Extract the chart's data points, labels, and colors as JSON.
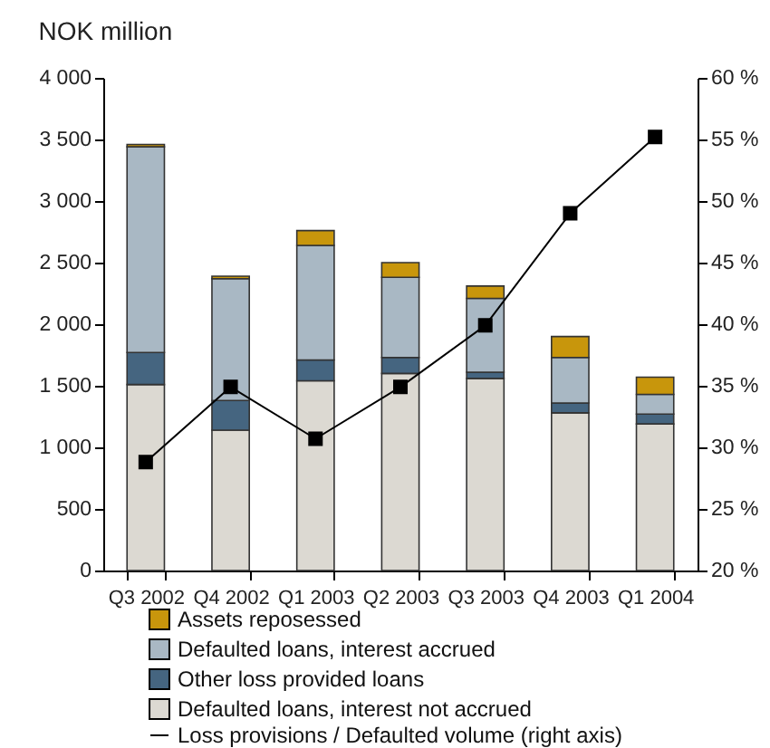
{
  "chart_data": {
    "type": "bar",
    "title": "NOK million",
    "stacked": true,
    "legend": "bottom",
    "grid": false,
    "categories": [
      "Q3 2002",
      "Q4 2002",
      "Q1 2003",
      "Q2 2003",
      "Q3 2003",
      "Q4 2003",
      "Q1 2004"
    ],
    "series": [
      {
        "name": "Defaulted loans, interest not accrued",
        "color": "#dcd9d2",
        "values": [
          1510,
          1140,
          1540,
          1600,
          1560,
          1280,
          1190
        ]
      },
      {
        "name": "Other loss provided loans",
        "color": "#456580",
        "values": [
          260,
          240,
          170,
          130,
          50,
          80,
          80
        ]
      },
      {
        "name": "Defaulted loans, interest accrued",
        "color": "#a9b8c4",
        "values": [
          1670,
          990,
          930,
          650,
          600,
          370,
          160
        ]
      },
      {
        "name": "Assets reposessed",
        "color": "#c8960c",
        "values": [
          20,
          20,
          120,
          120,
          100,
          170,
          140
        ]
      },
      {
        "name": "Loss provisions / Defaulted volume (right axis)",
        "type": "line",
        "axis": "y2",
        "color": "#000000",
        "marker": "square",
        "values": [
          28.8,
          34.9,
          30.7,
          34.9,
          39.9,
          49.0,
          55.2
        ]
      }
    ],
    "ylim": [
      0,
      4000
    ],
    "yticks": [
      0,
      500,
      {
        "value": 1000,
        "label": "1 000"
      },
      {
        "value": 1500,
        "label": "1 500"
      },
      {
        "value": 2000,
        "label": "2 000"
      },
      {
        "value": 2500,
        "label": "2 500"
      },
      {
        "value": 3000,
        "label": "3 000"
      },
      {
        "value": 3500,
        "label": "3 500"
      },
      {
        "value": 4000,
        "label": "4 000"
      }
    ],
    "y2lim": [
      20,
      60
    ],
    "y2ticks": [
      {
        "value": 20,
        "label": "20 %"
      },
      {
        "value": 25,
        "label": "25 %"
      },
      {
        "value": 30,
        "label": "30 %"
      },
      {
        "value": 35,
        "label": "35 %"
      },
      {
        "value": 40,
        "label": "40 %"
      },
      {
        "value": 45,
        "label": "45 %"
      },
      {
        "value": 50,
        "label": "50 %"
      },
      {
        "value": 55,
        "label": "55 %"
      },
      {
        "value": 60,
        "label": "60 %"
      }
    ]
  }
}
